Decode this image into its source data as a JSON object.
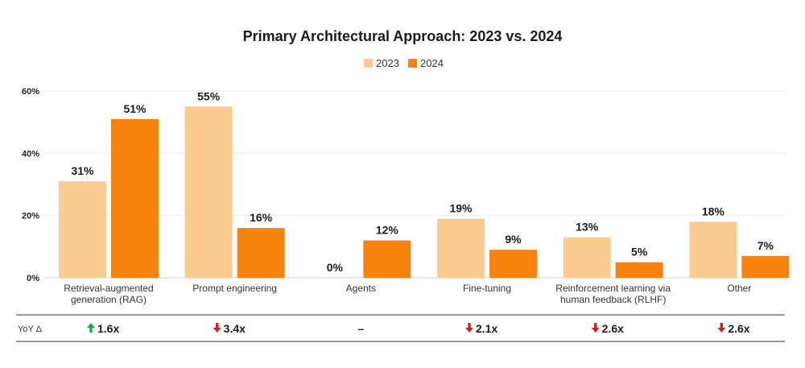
{
  "chart_data": {
    "type": "bar",
    "title": "Primary Architectural Approach: 2023 vs. 2024",
    "categories": [
      [
        "Retrieval-augmented",
        "generation (RAG)"
      ],
      [
        "Prompt engineering"
      ],
      [
        "Agents"
      ],
      [
        "Fine-tuning"
      ],
      [
        "Reinforcement learning via",
        "human feedback (RLHF)"
      ],
      [
        "Other"
      ]
    ],
    "series": [
      {
        "name": "2023",
        "color": "#fbcb92",
        "values": [
          31,
          55,
          0,
          19,
          13,
          18
        ],
        "labels": [
          "31%",
          "55%",
          "0%",
          "19%",
          "13%",
          "18%"
        ]
      },
      {
        "name": "2024",
        "color": "#f7820e",
        "values": [
          51,
          16,
          12,
          9,
          5,
          7
        ],
        "labels": [
          "51%",
          "16%",
          "12%",
          "9%",
          "5%",
          "7%"
        ]
      }
    ],
    "ylim": [
      0,
      60
    ],
    "yticks": [
      0,
      20,
      40,
      60
    ],
    "ytick_labels": [
      "0%",
      "20%",
      "40%",
      "60%"
    ],
    "grid": true,
    "legend_position": "top-center",
    "yoy": {
      "label": "YoY Δ",
      "values": [
        {
          "text": "1.6x",
          "dir": "up"
        },
        {
          "text": "3.4x",
          "dir": "down"
        },
        {
          "text": "–",
          "dir": "none"
        },
        {
          "text": "2.1x",
          "dir": "down"
        },
        {
          "text": "2.6x",
          "dir": "down"
        },
        {
          "text": "2.6x",
          "dir": "down"
        }
      ]
    }
  }
}
